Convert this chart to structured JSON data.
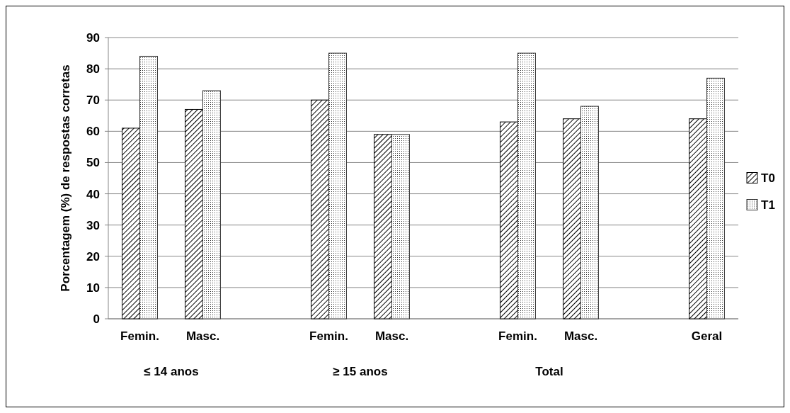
{
  "chart_data": {
    "type": "bar",
    "ylabel": "Porcentagem (%) de respostas corretas",
    "categories": [
      "Femin.",
      "Masc.",
      null,
      "Femin.",
      "Masc.",
      null,
      "Femin.",
      "Masc.",
      null,
      "Geral"
    ],
    "series": [
      {
        "name": "T0",
        "color": "#000000",
        "values": [
          61,
          67,
          null,
          70,
          59,
          null,
          63,
          64,
          null,
          64
        ]
      },
      {
        "name": "T1",
        "color": "#333333",
        "values": [
          84,
          73,
          null,
          85,
          59,
          null,
          85,
          68,
          null,
          77
        ]
      }
    ],
    "ylim": [
      0,
      90
    ],
    "yticks": [
      0,
      10,
      20,
      30,
      40,
      50,
      60,
      70,
      80,
      90
    ],
    "grid": "y",
    "legend": "right",
    "annotations": [
      "≤ 14 anos",
      "≥ 15 anos",
      "Total"
    ]
  }
}
